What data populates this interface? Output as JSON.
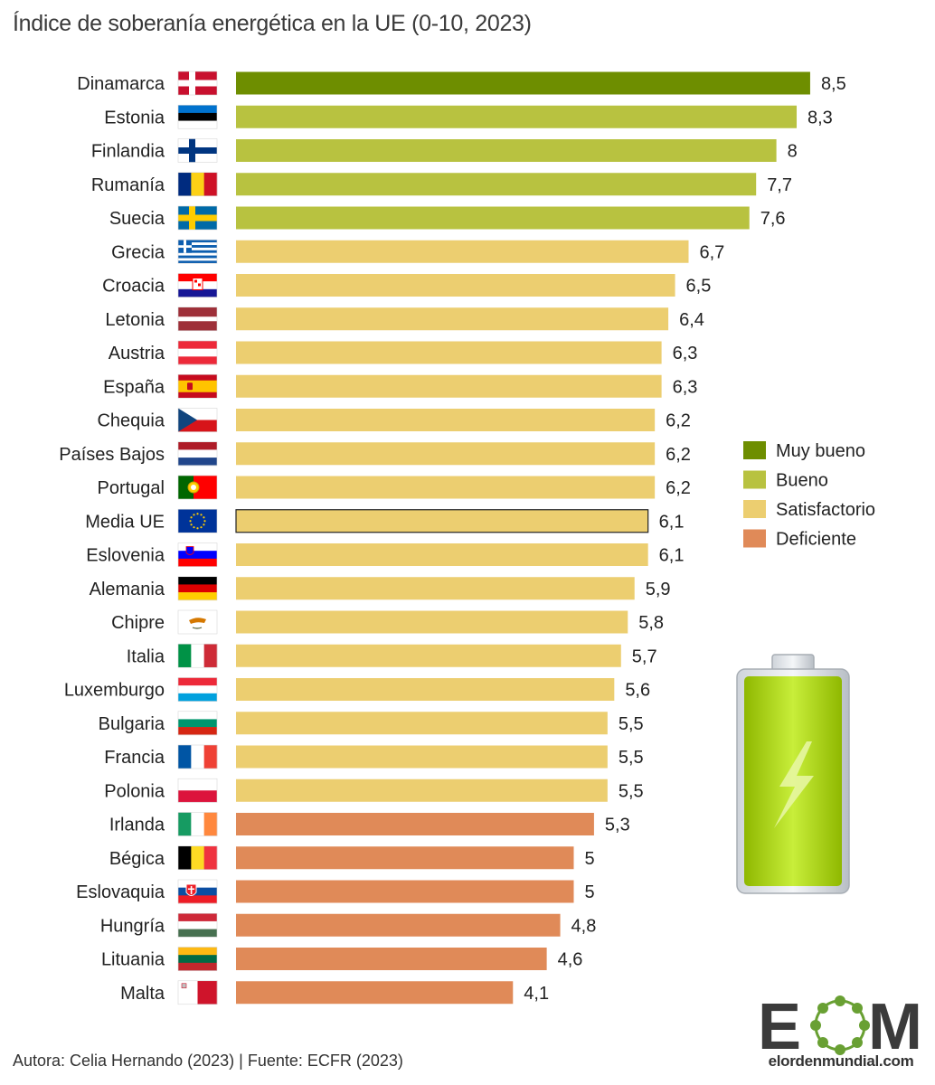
{
  "chart_data": {
    "type": "bar",
    "orientation": "horizontal",
    "title": "Índice de soberanía energética en la UE (0-10, 2023)",
    "xlim": [
      0,
      10
    ],
    "grid": false,
    "legend_position": "right",
    "categories": [
      "Dinamarca",
      "Estonia",
      "Finlandia",
      "Rumanía",
      "Suecia",
      "Grecia",
      "Croacia",
      "Letonia",
      "Austria",
      "España",
      "Chequia",
      "Países Bajos",
      "Portugal",
      "Media UE",
      "Eslovenia",
      "Alemania",
      "Chipre",
      "Italia",
      "Luxemburgo",
      "Bulgaria",
      "Francia",
      "Polonia",
      "Irlanda",
      "Bégica",
      "Eslovaquia",
      "Hungría",
      "Lituania",
      "Malta"
    ],
    "values": [
      8.5,
      8.3,
      8,
      7.7,
      7.6,
      6.7,
      6.5,
      6.4,
      6.3,
      6.3,
      6.2,
      6.2,
      6.2,
      6.1,
      6.1,
      5.9,
      5.8,
      5.7,
      5.6,
      5.5,
      5.5,
      5.5,
      5.3,
      5,
      5,
      4.8,
      4.6,
      4.1
    ],
    "value_labels": [
      "8,5",
      "8,3",
      "8",
      "7,7",
      "7,6",
      "6,7",
      "6,5",
      "6,4",
      "6,3",
      "6,3",
      "6,2",
      "6,2",
      "6,2",
      "6,1",
      "6,1",
      "5,9",
      "5,8",
      "5,7",
      "5,6",
      "5,5",
      "5,5",
      "5,5",
      "5,3",
      "5",
      "5",
      "4,8",
      "4,6",
      "4,1"
    ],
    "rating_classes": [
      0,
      1,
      1,
      1,
      1,
      2,
      2,
      2,
      2,
      2,
      2,
      2,
      2,
      2,
      2,
      2,
      2,
      2,
      2,
      2,
      2,
      2,
      3,
      3,
      3,
      3,
      3,
      3
    ],
    "highlighted_category": "Media UE",
    "flags": [
      "denmark",
      "estonia",
      "finland",
      "romania",
      "sweden",
      "greece",
      "croatia",
      "latvia",
      "austria",
      "spain",
      "czechia",
      "netherlands",
      "portugal",
      "eu",
      "slovenia",
      "germany",
      "cyprus",
      "italy",
      "luxembourg",
      "bulgaria",
      "france",
      "poland",
      "ireland",
      "belgium",
      "slovakia",
      "hungary",
      "lithuania",
      "malta"
    ],
    "legend": [
      {
        "name": "Muy bueno",
        "color": "#6e8e00"
      },
      {
        "name": "Bueno",
        "color": "#b8c240"
      },
      {
        "name": "Satisfactorio",
        "color": "#ecce70"
      },
      {
        "name": "Deficiente",
        "color": "#e08a58"
      }
    ]
  },
  "footer": "Autora: Celia Hernando (2023) | Fuente: ECFR (2023)",
  "logo": {
    "letters": "EOM",
    "site": "elordenmundial.com",
    "accent_color": "#69a033"
  },
  "decoration": {
    "icon": "battery-lightning-icon",
    "color": "#b9dc2a"
  }
}
